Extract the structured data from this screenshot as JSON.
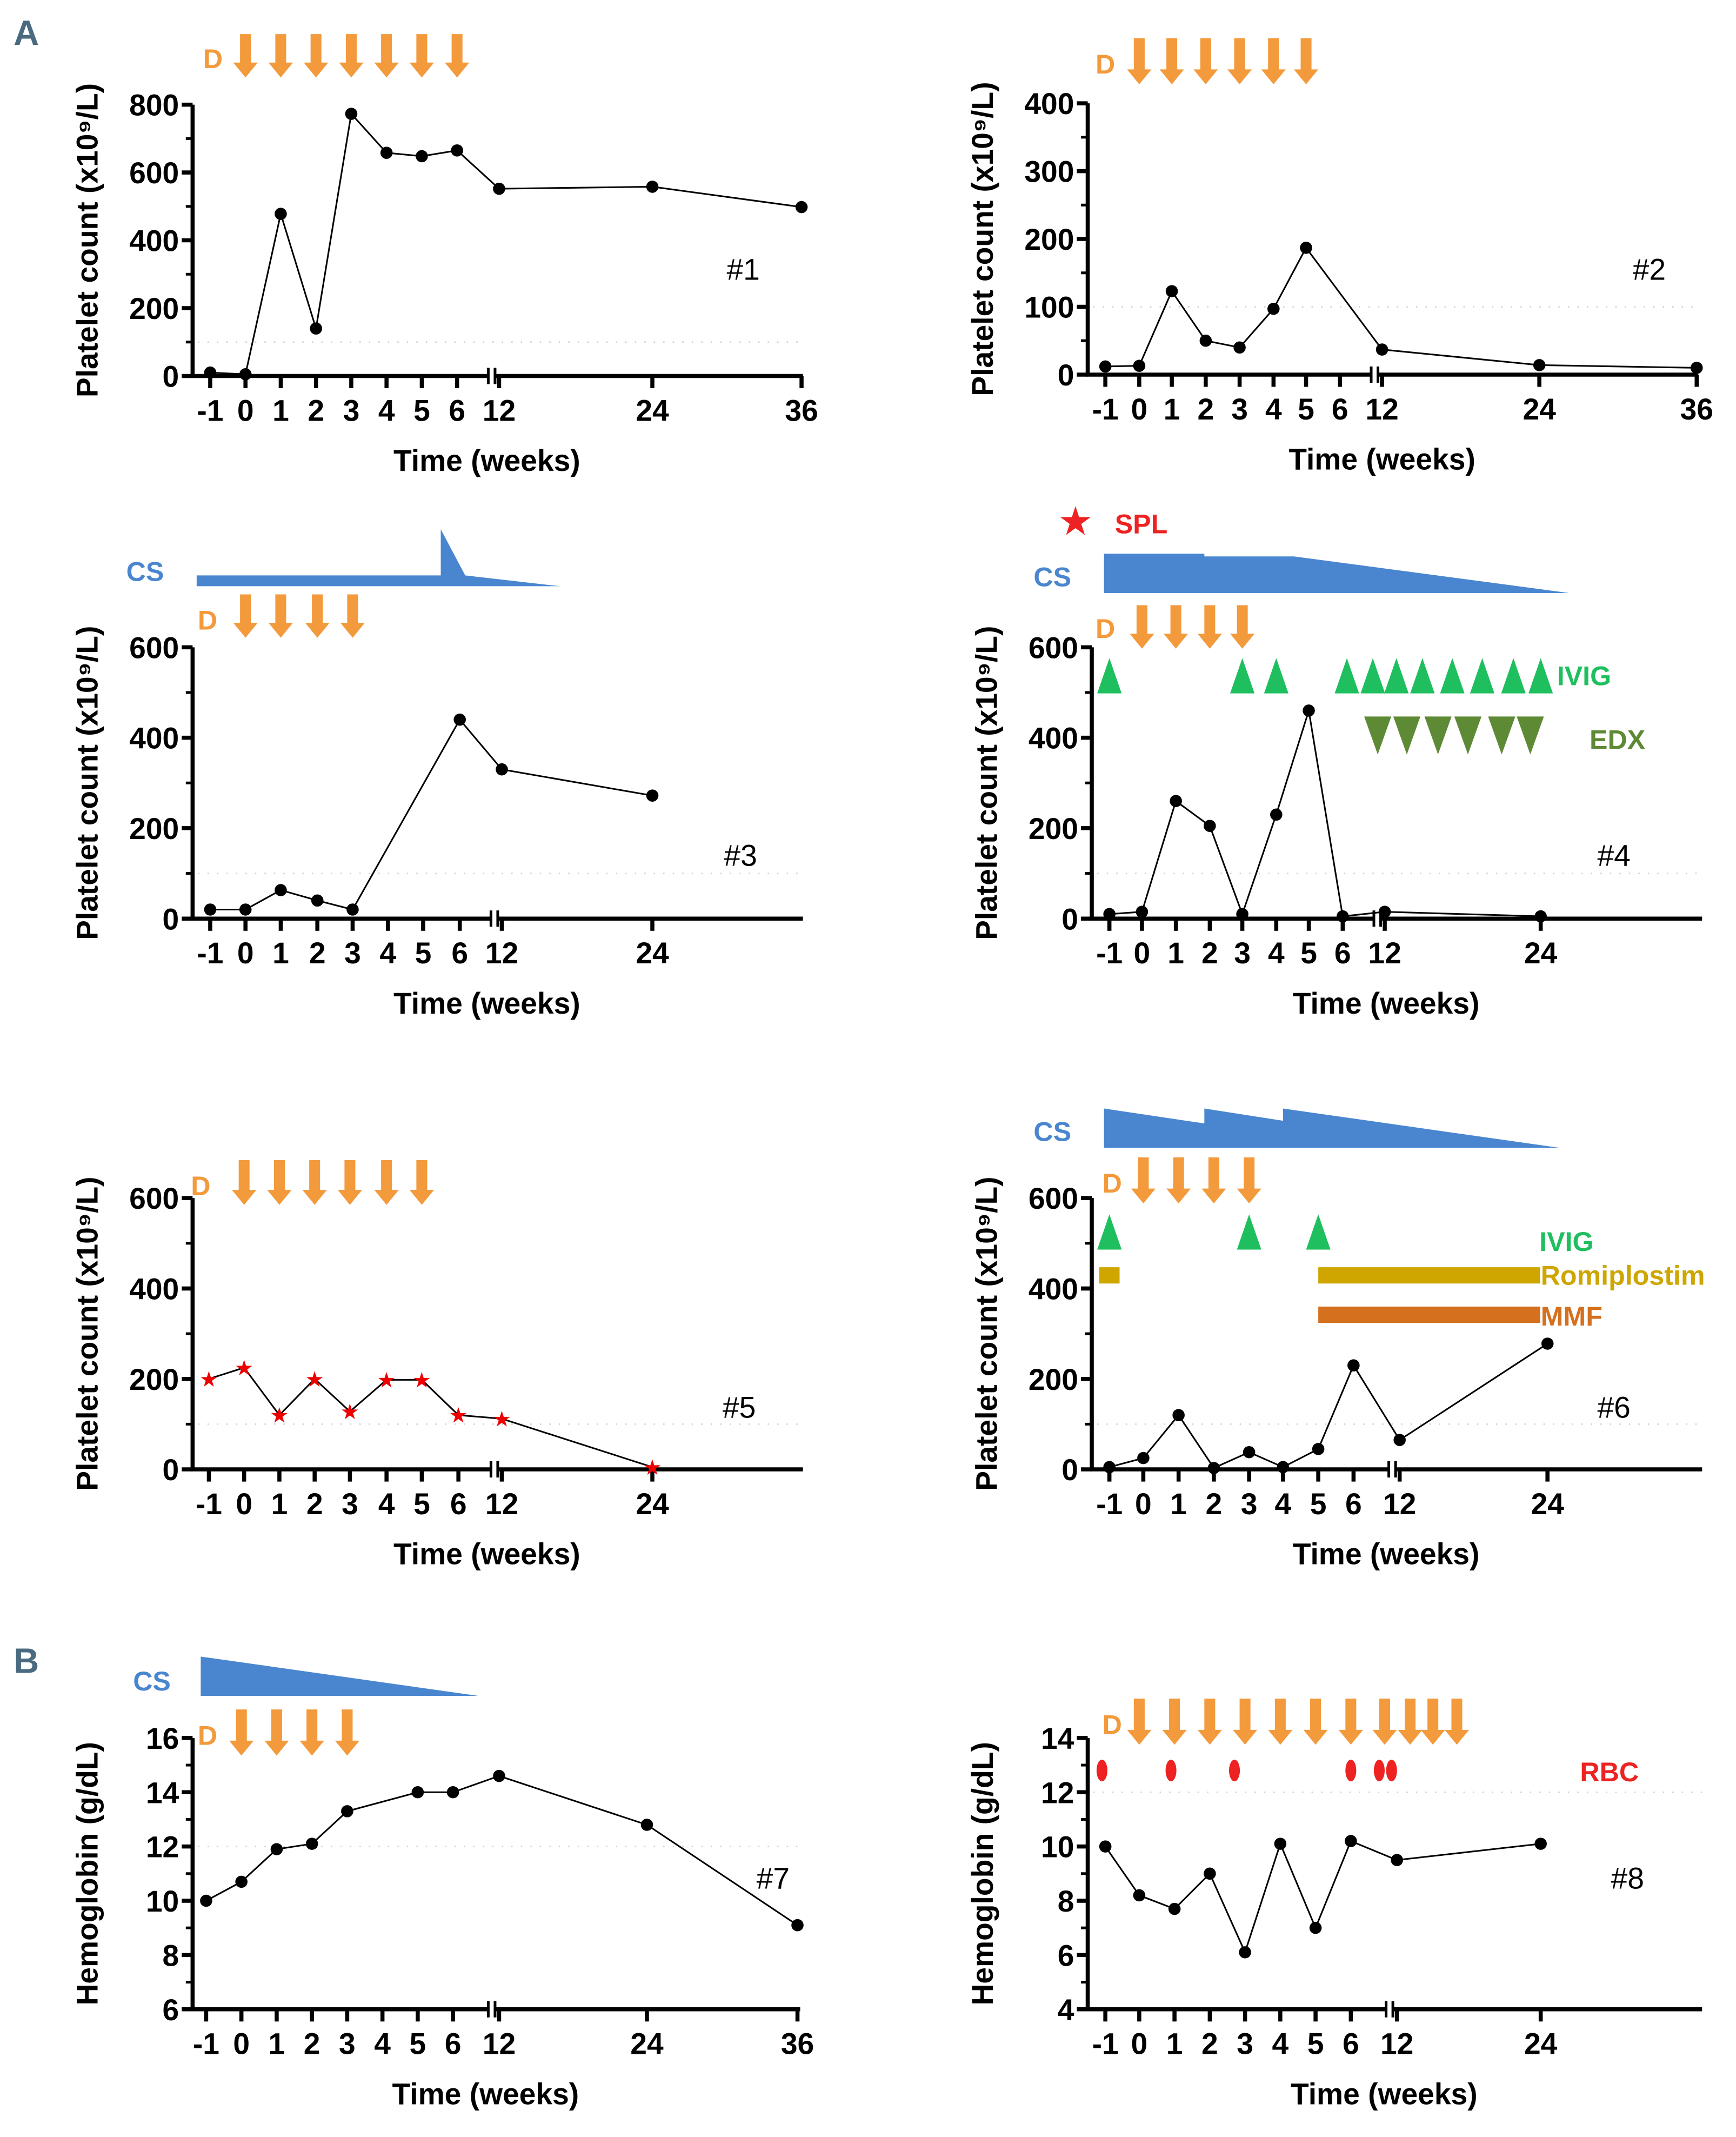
{
  "panels": {
    "a": "A",
    "b": "B"
  },
  "colors": {
    "drug": "#f39a3c",
    "cs": "#4a86d0",
    "ivig": "#1fbf5f",
    "edx": "#5f8a35",
    "romiplostim": "#cfa500",
    "mmf": "#d5701e",
    "rbc": "#ee2222",
    "spl": "#ee2222",
    "line": "#000000"
  },
  "chart_data": [
    {
      "type": "line",
      "title": "#1",
      "ylabel": "Platelet count (x10⁹/L)",
      "xlabel": "Time (weeks)",
      "ylim": [
        0,
        800
      ],
      "yticks": [
        0,
        200,
        400,
        600,
        800
      ],
      "xticks": [
        "-1",
        "0",
        "1",
        "2",
        "3",
        "4",
        "5",
        "6",
        "12",
        "24",
        "36"
      ],
      "reference_line": 100,
      "marker": "circle",
      "points": [
        [
          -1,
          10
        ],
        [
          0,
          5
        ],
        [
          1,
          478
        ],
        [
          2,
          140
        ],
        [
          3,
          773
        ],
        [
          4,
          658
        ],
        [
          5,
          648
        ],
        [
          6,
          665
        ],
        [
          12,
          552
        ],
        [
          24,
          558
        ],
        [
          36,
          498
        ]
      ],
      "drug_label": "D",
      "drug_weeks": [
        0,
        1,
        2,
        3,
        4,
        5,
        6
      ]
    },
    {
      "type": "line",
      "title": "#2",
      "ylabel": "Platelet count (x10⁹/L)",
      "xlabel": "Time (weeks)",
      "ylim": [
        0,
        400
      ],
      "yticks": [
        0,
        100,
        200,
        300,
        400
      ],
      "xticks": [
        "-1",
        "0",
        "1",
        "2",
        "3",
        "4",
        "5",
        "6",
        "12",
        "24",
        "36"
      ],
      "reference_line": 100,
      "marker": "circle",
      "points": [
        [
          -1,
          12
        ],
        [
          0,
          13
        ],
        [
          1,
          123
        ],
        [
          2,
          50
        ],
        [
          3,
          40
        ],
        [
          4,
          97
        ],
        [
          5,
          187
        ],
        [
          12,
          37
        ],
        [
          24,
          14
        ],
        [
          36,
          10
        ]
      ],
      "drug_label": "D",
      "drug_weeks": [
        0,
        1,
        2,
        3,
        4,
        5
      ]
    },
    {
      "type": "line",
      "title": "#3",
      "ylabel": "Platelet count (x10⁹/L)",
      "xlabel": "Time (weeks)",
      "ylim": [
        0,
        600
      ],
      "yticks": [
        0,
        200,
        400,
        600
      ],
      "xticks": [
        "-1",
        "0",
        "1",
        "2",
        "3",
        "4",
        "5",
        "6",
        "12",
        "24"
      ],
      "reference_line": 100,
      "marker": "circle",
      "points": [
        [
          -1,
          20
        ],
        [
          0,
          20
        ],
        [
          1,
          63
        ],
        [
          2,
          40
        ],
        [
          3,
          20
        ],
        [
          6,
          440
        ],
        [
          12,
          330
        ],
        [
          24,
          272
        ]
      ],
      "drug_label": "D",
      "drug_weeks": [
        0,
        1,
        2,
        3
      ],
      "cs_label": "CS"
    },
    {
      "type": "line",
      "title": "#4",
      "ylabel": "Platelet count (x10⁹/L)",
      "xlabel": "Time (weeks)",
      "ylim": [
        0,
        600
      ],
      "yticks": [
        0,
        200,
        400,
        600
      ],
      "xticks": [
        "-1",
        "0",
        "1",
        "2",
        "3",
        "4",
        "5",
        "6",
        "12",
        "24"
      ],
      "reference_line": 100,
      "marker": "circle",
      "points": [
        [
          -1,
          10
        ],
        [
          0,
          15
        ],
        [
          1,
          260
        ],
        [
          2,
          205
        ],
        [
          3,
          10
        ],
        [
          4,
          230
        ],
        [
          5,
          460
        ],
        [
          6,
          5
        ],
        [
          12,
          15
        ],
        [
          24,
          5
        ]
      ],
      "drug_label": "D",
      "drug_weeks": [
        0,
        1,
        2,
        3
      ],
      "cs_label": "CS",
      "spl_label": "SPL",
      "ivig_label": "IVIG",
      "ivig_weeks": [
        -1,
        3,
        4,
        6.6,
        10.3,
        12.9,
        14.9,
        17.2,
        19.5,
        21.9,
        24
      ],
      "edx_label": "EDX",
      "edx_weeks": [
        11,
        13.7,
        16.1,
        18.4,
        21,
        23.2
      ]
    },
    {
      "type": "line",
      "title": "#5",
      "ylabel": "Platelet count (x10⁹/L)",
      "xlabel": "Time (weeks)",
      "ylim": [
        0,
        600
      ],
      "yticks": [
        0,
        200,
        400,
        600
      ],
      "xticks": [
        "-1",
        "0",
        "1",
        "2",
        "3",
        "4",
        "5",
        "6",
        "12",
        "24"
      ],
      "reference_line": 100,
      "marker": "star",
      "points": [
        [
          -1,
          200
        ],
        [
          0,
          225
        ],
        [
          1,
          120
        ],
        [
          2,
          200
        ],
        [
          3,
          128
        ],
        [
          4,
          198
        ],
        [
          5,
          198
        ],
        [
          6,
          120
        ],
        [
          12,
          112
        ],
        [
          24,
          5
        ]
      ],
      "drug_label": "D",
      "drug_weeks": [
        0,
        1,
        2,
        3,
        4,
        5
      ]
    },
    {
      "type": "line",
      "title": "#6",
      "ylabel": "Platelet count (x10⁹/L)",
      "xlabel": "Time (weeks)",
      "ylim": [
        0,
        600
      ],
      "yticks": [
        0,
        200,
        400,
        600
      ],
      "xticks": [
        "-1",
        "0",
        "1",
        "2",
        "3",
        "4",
        "5",
        "6",
        "12",
        "24"
      ],
      "reference_line": 100,
      "marker": "circle",
      "points": [
        [
          -1,
          5
        ],
        [
          0,
          25
        ],
        [
          1,
          120
        ],
        [
          2,
          3
        ],
        [
          3,
          38
        ],
        [
          4,
          5
        ],
        [
          5,
          45
        ],
        [
          6,
          230
        ],
        [
          12,
          65
        ],
        [
          24,
          278
        ]
      ],
      "drug_label": "D",
      "drug_weeks": [
        0,
        1,
        2,
        3
      ],
      "cs_label": "CS",
      "ivig_label": "IVIG",
      "ivig_weeks": [
        -1,
        3,
        5
      ],
      "romiplostim_label": "Romiplostim",
      "romiplostim_periods": [
        [
          -1.3,
          -0.7
        ],
        [
          5,
          23.4
        ]
      ],
      "mmf_label": "MMF",
      "mmf_periods": [
        [
          5,
          23.4
        ]
      ]
    },
    {
      "type": "line",
      "title": "#7",
      "ylabel": "Hemoglobin (g/dL)",
      "xlabel": "Time (weeks)",
      "ylim": [
        6,
        16
      ],
      "yticks": [
        6,
        8,
        10,
        12,
        14,
        16
      ],
      "xticks": [
        "-1",
        "0",
        "1",
        "2",
        "3",
        "4",
        "5",
        "6",
        "12",
        "24",
        "36"
      ],
      "reference_line": 12,
      "marker": "circle",
      "points": [
        [
          -1,
          10
        ],
        [
          0,
          10.7
        ],
        [
          1,
          11.9
        ],
        [
          2,
          12.1
        ],
        [
          3,
          13.3
        ],
        [
          5,
          14
        ],
        [
          6,
          14
        ],
        [
          12,
          14.6
        ],
        [
          24,
          12.8
        ],
        [
          36,
          9.1
        ]
      ],
      "drug_label": "D",
      "drug_weeks": [
        0,
        1,
        2,
        3
      ],
      "cs_label": "CS"
    },
    {
      "type": "line",
      "title": "#8",
      "ylabel": "Hemoglobin (g/dL)",
      "xlabel": "Time (weeks)",
      "ylim": [
        4,
        14
      ],
      "yticks": [
        4,
        6,
        8,
        10,
        12,
        14
      ],
      "xticks": [
        "-1",
        "0",
        "1",
        "2",
        "3",
        "4",
        "5",
        "6",
        "12",
        "24"
      ],
      "reference_line": 12,
      "marker": "circle",
      "points": [
        [
          -1,
          10
        ],
        [
          0,
          8.2
        ],
        [
          1,
          7.7
        ],
        [
          2,
          9
        ],
        [
          3,
          6.1
        ],
        [
          4,
          10.1
        ],
        [
          5,
          7
        ],
        [
          6,
          10.2
        ],
        [
          12,
          9.5
        ],
        [
          24,
          10.1
        ]
      ],
      "drug_label": "D",
      "drug_weeks": [
        0,
        1,
        2,
        3,
        4,
        5,
        6,
        10.4,
        13.1,
        15,
        17
      ],
      "rbc_label": "RBC",
      "rbc_weeks": [
        -1.1,
        0.9,
        2.7,
        6,
        9.7,
        11.3
      ]
    }
  ]
}
